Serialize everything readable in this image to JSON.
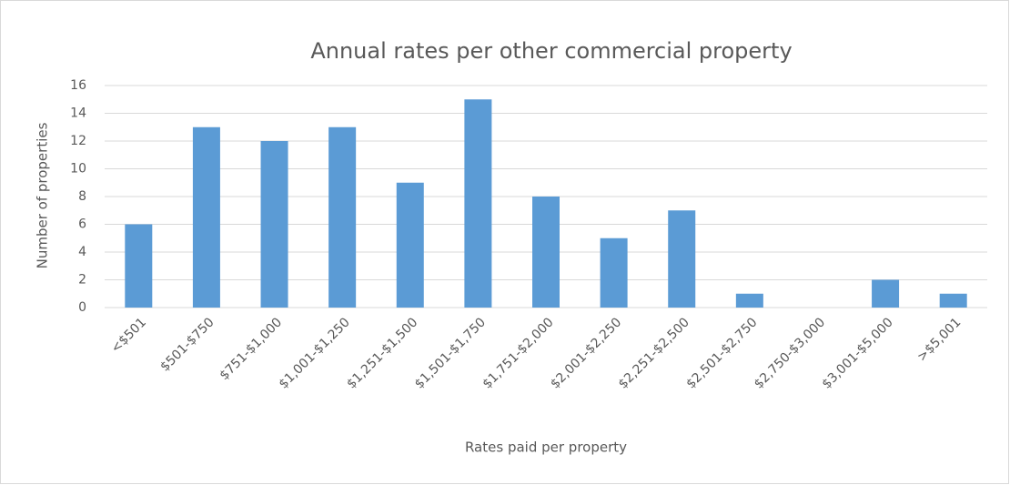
{
  "chart_data": {
    "type": "bar",
    "title": "Annual rates per other commercial property",
    "x_label": "Rates paid per property",
    "y_label": "Number of properties",
    "categories": [
      "<$501",
      "$501-$750",
      "$751-$1,000",
      "$1,001-$1,250",
      "$1,251-$1,500",
      "$1,501-$1,750",
      "$1,751-$2,000",
      "$2,001-$2,250",
      "$2,251-$2,500",
      "$2,501-$2,750",
      "$2,750-$3,000",
      "$3,001-$5,000",
      ">$5,001"
    ],
    "values": [
      6,
      13,
      12,
      13,
      9,
      15,
      8,
      5,
      7,
      1,
      0,
      2,
      1
    ],
    "color": "#5b9bd5",
    "ylim": [
      0,
      16
    ],
    "yticks": [
      0,
      2,
      4,
      6,
      8,
      10,
      12,
      14,
      16
    ],
    "grid": true
  }
}
